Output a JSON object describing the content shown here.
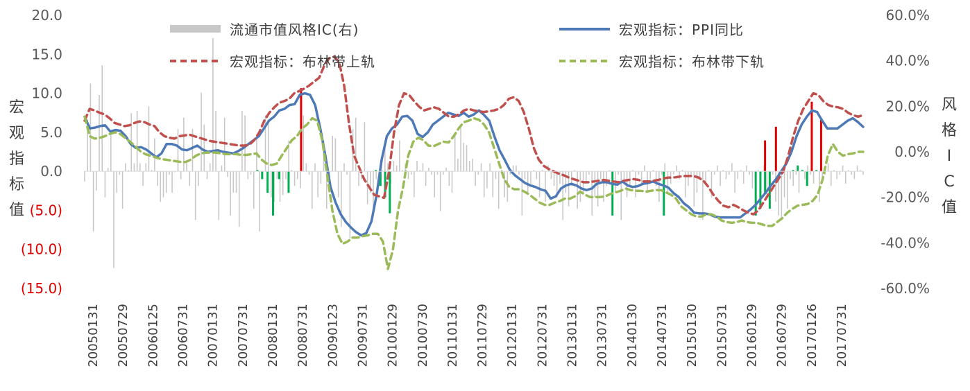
{
  "chart_data": {
    "type": "line",
    "left_axis": {
      "label": "宏观指标值",
      "ticks": [
        "20.0",
        "15.0",
        "10.0",
        "5.0",
        "0.0",
        "(5.0)",
        "(10.0)",
        "(15.0)"
      ],
      "tick_values": [
        20,
        15,
        10,
        5,
        0,
        -5,
        -10,
        -15
      ],
      "negative_color": "#e00000",
      "ylim": [
        -15,
        20
      ]
    },
    "right_axis": {
      "label": "风格IC值",
      "ticks": [
        "60.0%",
        "40.0%",
        "20.0%",
        "0.0%",
        "-20.0%",
        "-40.0%",
        "-60.0%"
      ],
      "tick_values": [
        60,
        40,
        20,
        0,
        -20,
        -40,
        -60
      ],
      "ylim": [
        -60,
        60
      ]
    },
    "x_ticks": [
      "20050131",
      "20050729",
      "20060125",
      "20060731",
      "20070131",
      "20070731",
      "20080131",
      "20080731",
      "20090123",
      "20090731",
      "20100129",
      "20100730",
      "20110131",
      "20110729",
      "20120131",
      "20120731",
      "20130131",
      "20130731",
      "20140130",
      "20140731",
      "20150130",
      "20150731",
      "20160129",
      "20160729",
      "20170126",
      "20170731"
    ],
    "legend": [
      {
        "name": "流通市值风格IC(右)",
        "style": "bar",
        "color": "#c8c8c8"
      },
      {
        "name": "宏观指标：PPI同比",
        "style": "solid",
        "color": "#4e79b7"
      },
      {
        "name": "宏观指标：布林带上轨",
        "style": "dashed",
        "color": "#c0504d"
      },
      {
        "name": "宏观指标：布林带下轨",
        "style": "dashed",
        "color": "#9bbb59"
      }
    ],
    "series": [
      {
        "name": "宏观指标：PPI同比",
        "axis": "left",
        "color": "#4e79b7",
        "values": [
          7.0,
          5.5,
          5.6,
          5.8,
          5.9,
          5.1,
          5.3,
          5.2,
          4.5,
          3.5,
          3.0,
          3.1,
          2.8,
          2.3,
          1.8,
          2.3,
          3.5,
          3.5,
          3.3,
          2.8,
          2.7,
          3.0,
          3.3,
          2.8,
          2.5,
          2.6,
          2.7,
          2.5,
          2.4,
          2.3,
          2.6,
          3.0,
          3.5,
          4.0,
          4.5,
          5.5,
          6.5,
          7.0,
          7.8,
          8.0,
          8.5,
          8.6,
          9.8,
          10.0,
          9.8,
          8.5,
          5.5,
          2.0,
          -2.0,
          -4.0,
          -5.5,
          -6.5,
          -7.2,
          -7.8,
          -8.2,
          -7.9,
          -6.4,
          -3.0,
          1.5,
          4.5,
          5.5,
          6.0,
          7.0,
          7.1,
          6.5,
          4.8,
          4.4,
          5.0,
          6.0,
          6.5,
          7.0,
          7.5,
          7.3,
          7.1,
          7.5,
          7.0,
          7.3,
          7.8,
          7.2,
          6.5,
          4.5,
          2.7,
          1.5,
          0.2,
          -0.5,
          -1.0,
          -1.5,
          -1.8,
          -2.0,
          -2.3,
          -2.5,
          -3.5,
          -3.2,
          -2.2,
          -1.8,
          -1.6,
          -1.8,
          -2.2,
          -2.4,
          -2.2,
          -1.6,
          -1.4,
          -1.4,
          -1.6,
          -1.7,
          -1.3,
          -1.8,
          -2.0,
          -1.9,
          -1.6,
          -1.5,
          -1.3,
          -1.6,
          -1.8,
          -2.1,
          -2.8,
          -3.3,
          -4.1,
          -4.6,
          -5.3,
          -5.4,
          -5.4,
          -5.5,
          -5.8,
          -5.9,
          -5.9,
          -5.9,
          -5.9,
          -5.9,
          -5.4,
          -4.9,
          -4.3,
          -3.5,
          -2.7,
          -1.8,
          -1.0,
          0.0,
          1.0,
          2.5,
          4.5,
          6.0,
          7.0,
          7.8,
          7.6,
          6.5,
          5.5,
          5.5,
          5.5,
          6.0,
          6.5,
          6.8,
          6.3,
          5.7
        ]
      },
      {
        "name": "宏观指标：布林带上轨",
        "axis": "left",
        "color": "#c0504d",
        "values": [
          6.5,
          8.0,
          7.8,
          7.5,
          7.3,
          6.8,
          6.2,
          6.0,
          5.8,
          5.9,
          6.2,
          6.4,
          6.3,
          6.0,
          5.8,
          5.0,
          4.5,
          4.3,
          4.2,
          4.5,
          4.6,
          4.7,
          4.5,
          4.3,
          4.1,
          3.9,
          3.8,
          3.7,
          3.6,
          3.5,
          3.4,
          3.3,
          3.3,
          3.4,
          4.0,
          5.0,
          6.5,
          7.5,
          8.2,
          8.8,
          9.0,
          9.3,
          10.0,
          10.3,
          10.6,
          11.0,
          11.5,
          12.0,
          13.5,
          14.5,
          14.7,
          14.0,
          11.0,
          6.0,
          2.0,
          0.5,
          -1.0,
          -2.0,
          -3.0,
          -3.2,
          -3.4,
          0.0,
          5.0,
          8.5,
          10.0,
          9.8,
          9.0,
          8.3,
          7.8,
          8.0,
          8.2,
          8.0,
          7.5,
          7.0,
          7.0,
          7.3,
          7.8,
          8.0,
          7.8,
          7.7,
          7.6,
          7.7,
          7.8,
          8.0,
          8.5,
          9.3,
          9.5,
          9.0,
          7.6,
          5.5,
          3.0,
          1.5,
          0.7,
          0.3,
          0.0,
          -0.3,
          -0.5,
          -0.8,
          -1.0,
          -1.2,
          -1.4,
          -1.4,
          -1.3,
          -1.2,
          -1.1,
          -1.2,
          -1.3,
          -1.4,
          -1.2,
          -1.1,
          -1.0,
          -1.1,
          -1.3,
          -1.3,
          -1.2,
          -1.1,
          -0.9,
          -0.8,
          -0.8,
          -0.7,
          -0.6,
          -0.6,
          -0.6,
          -0.8,
          -1.2,
          -2.0,
          -3.0,
          -3.8,
          -4.4,
          -4.6,
          -4.3,
          -4.6,
          -5.0,
          -5.3,
          -5.5,
          -5.0,
          -4.0,
          -3.0,
          -2.0,
          -1.0,
          0.0,
          2.0,
          4.5,
          6.5,
          8.0,
          9.0,
          10.0,
          9.8,
          9.0,
          8.5,
          8.3,
          8.2,
          8.0,
          7.5,
          7.2,
          7.0,
          7.2
        ]
      },
      {
        "name": "宏观指标：布林带下轨",
        "axis": "left",
        "color": "#9bbb59",
        "values": [
          7.0,
          4.5,
          4.2,
          4.3,
          4.5,
          4.8,
          5.0,
          4.8,
          4.3,
          3.8,
          3.2,
          2.6,
          2.2,
          2.0,
          1.8,
          1.6,
          1.5,
          1.4,
          1.3,
          1.2,
          1.2,
          1.5,
          2.0,
          2.3,
          2.4,
          2.4,
          2.4,
          2.3,
          2.2,
          2.2,
          2.2,
          2.1,
          2.1,
          2.2,
          2.3,
          1.5,
          1.0,
          0.8,
          1.0,
          2.0,
          3.0,
          4.0,
          4.5,
          5.5,
          6.0,
          6.8,
          6.5,
          4.0,
          -0.5,
          -5.0,
          -8.0,
          -9.3,
          -9.0,
          -8.5,
          -8.5,
          -8.3,
          -8.2,
          -8.0,
          -8.0,
          -9.0,
          -12.5,
          -10.0,
          -5.0,
          -2.0,
          2.0,
          3.8,
          4.3,
          4.0,
          3.3,
          3.2,
          3.5,
          3.8,
          3.7,
          4.5,
          5.5,
          6.3,
          6.5,
          6.8,
          6.6,
          6.0,
          5.0,
          3.0,
          1.0,
          -1.0,
          -2.0,
          -2.3,
          -2.3,
          -2.6,
          -3.0,
          -3.5,
          -4.0,
          -4.3,
          -4.3,
          -4.0,
          -3.8,
          -3.5,
          -3.5,
          -3.2,
          -2.6,
          -3.0,
          -3.3,
          -3.3,
          -3.3,
          -3.2,
          -2.9,
          -2.7,
          -2.5,
          -2.2,
          -2.4,
          -2.5,
          -2.5,
          -2.6,
          -2.5,
          -2.4,
          -2.4,
          -2.7,
          -3.0,
          -3.5,
          -4.5,
          -5.0,
          -5.5,
          -5.8,
          -5.8,
          -5.5,
          -5.5,
          -5.8,
          -6.3,
          -6.5,
          -6.6,
          -6.5,
          -6.3,
          -6.5,
          -6.6,
          -6.6,
          -6.8,
          -7.0,
          -7.0,
          -6.5,
          -6.0,
          -5.3,
          -4.8,
          -4.4,
          -4.3,
          -4.2,
          -3.8,
          -3.0,
          -1.0,
          2.0,
          3.5,
          2.5,
          2.0,
          2.2,
          2.3,
          2.5,
          2.5
        ]
      },
      {
        "name": "流通市值风格IC(右)",
        "axis": "right",
        "type": "bar",
        "color": "#c8c8c8",
        "values": [
          -13,
          14,
          30,
          -35,
          -17,
          25,
          38,
          -20,
          -7,
          8,
          -51,
          -18,
          -10,
          -25,
          -5,
          -8,
          17,
          -5,
          18,
          -5,
          -15,
          -5,
          20,
          -8,
          6,
          -15,
          -22,
          -20,
          -18,
          -10,
          -18,
          -9,
          10,
          -12,
          15,
          -5,
          -15,
          10,
          -30,
          -15,
          26,
          12,
          -12,
          -5,
          50,
          18,
          -30,
          -6,
          15,
          -11,
          -28,
          -18,
          -18,
          -33,
          18,
          16,
          -12,
          -10,
          -25,
          6,
          -35,
          -10,
          16,
          14,
          -20,
          -22,
          -12,
          -22,
          -19,
          -12,
          5,
          -8,
          -15,
          -12,
          -16,
          16,
          -5,
          -10,
          -25,
          -5,
          -20,
          -14,
          5,
          -25,
          -12,
          7,
          6,
          -20,
          -33,
          -5,
          -10,
          -38,
          10,
          15,
          -15,
          -12,
          13,
          -23,
          -18,
          -25,
          -12,
          -15,
          -8,
          5,
          -5,
          -14,
          -4,
          -6,
          5,
          -8,
          -5,
          -12,
          -10,
          -20,
          -4,
          -8,
          -5,
          -15,
          -7,
          -10,
          -20,
          -10,
          -26,
          -10,
          -7,
          -15,
          -18,
          8,
          -3,
          12,
          4,
          3,
          -4,
          -3,
          -15,
          -10,
          -5,
          -20,
          -16,
          -5,
          -20,
          -12,
          -25,
          -8,
          -20,
          -22,
          -10,
          -6,
          -6,
          -10,
          -28,
          -12,
          -18,
          -14,
          -8,
          -12,
          -20,
          -8,
          -22,
          -6,
          -12,
          -15,
          -20,
          -14,
          -30,
          -18,
          -24,
          -15,
          -8,
          -25,
          -22,
          -18,
          -14,
          -10,
          -28,
          -20,
          -24,
          -12,
          -22,
          -15,
          -8,
          -26,
          -18,
          -10,
          -30,
          -12,
          -20,
          -15,
          -8,
          -20,
          -10,
          -14,
          -6,
          -18,
          -12,
          -8,
          -15,
          -22,
          -10,
          -5,
          -18,
          -14,
          -10,
          -6,
          -12,
          -8,
          -20,
          -15,
          -10,
          -24,
          -18,
          -12,
          -30,
          -14,
          -8,
          -20,
          -10,
          -6,
          -15,
          -8,
          -12,
          -10,
          -5,
          -18,
          -12,
          -8,
          -14,
          -6,
          -10,
          -16,
          -12,
          -8,
          -10,
          -6,
          -20,
          -15,
          -10,
          -22,
          -28,
          -30,
          -20,
          -25,
          -12,
          -15,
          -10,
          -18,
          -8,
          -12,
          -6,
          -10,
          -14,
          -8,
          -22,
          -12,
          -10,
          -5,
          -15,
          -8,
          -12,
          -10,
          -6,
          -14,
          -8,
          -10,
          -12,
          -6,
          -8,
          -10
        ]
      },
      {
        "name": "IC信号(负)",
        "axis": "right",
        "type": "signal",
        "color": "#00b050",
        "values": []
      },
      {
        "name": "IC信号(正)",
        "axis": "right",
        "type": "signal",
        "color": "#e00000",
        "values": []
      }
    ]
  }
}
